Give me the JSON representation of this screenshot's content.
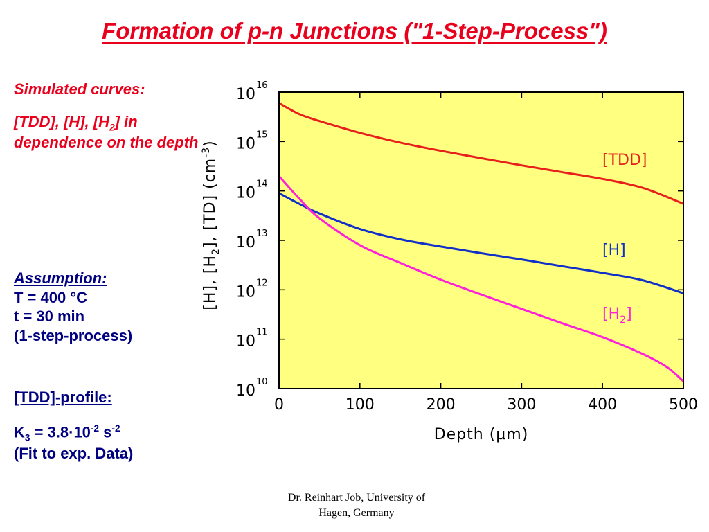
{
  "title": "Formation of p-n Junctions (\"1-Step-Process\")",
  "left_panel": {
    "sim_heading": "Simulated curves:",
    "sim_text_1": "[TDD], [H], [H",
    "sim_text_sub": "2",
    "sim_text_2": "] in dependence on the depth",
    "assumption_heading": "Assumption:",
    "assumption_lines": [
      "T = 400 °C",
      "t = 30 min",
      "(1-step-process)"
    ],
    "profile_heading": "[TDD]-profile:",
    "k3_prefix": "K",
    "k3_sub": "3",
    "k3_mid": " = 3.8·10",
    "k3_exp": "-2",
    "k3_unit": " s",
    "k3_unit_exp": "-2",
    "k3_note": "(Fit to exp. Data)"
  },
  "footer": {
    "line1": "Dr. Reinhart Job, University of",
    "line2": "Hagen, Germany"
  },
  "colors": {
    "title": "#e8001c",
    "assumption": "#000080",
    "plot_bg": "#ffff80",
    "tdd": "#e8201c",
    "h": "#1030c8",
    "h2": "#ff20d8"
  },
  "chart_data": {
    "type": "line",
    "xlabel": "Depth (µm)",
    "ylabel": "[H], [H2], [TD] (cm-3)",
    "xlim": [
      0,
      500
    ],
    "ylim_log10": [
      10,
      16
    ],
    "log_scale_y": true,
    "x_ticks": [
      "0",
      "100",
      "200",
      "300",
      "400",
      "500"
    ],
    "y_tick_base": "10",
    "y_tick_exponents": [
      "16",
      "15",
      "14",
      "13",
      "12",
      "11",
      "10"
    ],
    "series": [
      {
        "name": "[TDD]",
        "x": [
          0,
          25,
          50,
          100,
          150,
          200,
          250,
          300,
          350,
          400,
          450,
          500
        ],
        "y": [
          6000000000000000.0,
          3600000000000000.0,
          2600000000000000.0,
          1500000000000000.0,
          950000000000000.0,
          650000000000000.0,
          460000000000000.0,
          330000000000000.0,
          240000000000000.0,
          175000000000000.0,
          115000000000000.0,
          55000000000000.0
        ]
      },
      {
        "name": "[H]",
        "x": [
          0,
          25,
          50,
          100,
          150,
          200,
          250,
          300,
          350,
          400,
          450,
          500
        ],
        "y": [
          90000000000000.0,
          55000000000000.0,
          35000000000000.0,
          17000000000000.0,
          10500000000000.0,
          7500000000000.0,
          5500000000000.0,
          4100000000000.0,
          3000000000000.0,
          2200000000000.0,
          1550000000000.0,
          850000000000.0
        ]
      },
      {
        "name": "[H2]",
        "x": [
          0,
          25,
          50,
          100,
          150,
          200,
          250,
          300,
          350,
          400,
          450,
          480,
          500
        ],
        "y": [
          200000000000000.0,
          70000000000000.0,
          28000000000000.0,
          8000000000000.0,
          3500000000000.0,
          1600000000000.0,
          800000000000.0,
          410000000000.0,
          210000000000.0,
          110000000000.0,
          50000000000.0,
          27000000000.0,
          14000000000.0
        ]
      }
    ],
    "series_labels": {
      "tdd": "[TDD]",
      "h": "[H]",
      "h2_prefix": "[H",
      "h2_sub": "2",
      "h2_suffix": "]"
    },
    "ylabel_parts": {
      "p1": "[H], [H",
      "sub": "2",
      "p2": "], [TD] (cm",
      "sup": "-3",
      "p3": ")"
    }
  }
}
